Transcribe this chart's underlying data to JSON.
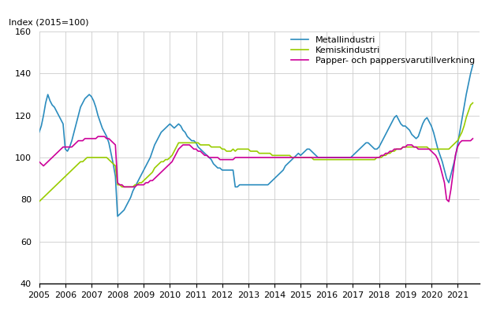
{
  "title": "Index (2015=100)",
  "ylabel": "Index (2015=100)",
  "ylim": [
    40,
    160
  ],
  "yticks": [
    40,
    60,
    80,
    100,
    120,
    140,
    160
  ],
  "xlim_start": 2005.0,
  "xlim_end": 2021.83,
  "xtick_years": [
    2005,
    2006,
    2007,
    2008,
    2009,
    2010,
    2011,
    2012,
    2013,
    2014,
    2015,
    2016,
    2017,
    2018,
    2019,
    2020,
    2021
  ],
  "legend_labels": [
    "Metallindustri",
    "Kemiskindustri",
    "Papper- och pappersvarutillverkning"
  ],
  "colors": {
    "metallindustri": "#2b8cbe",
    "kemiskindustri": "#99cc00",
    "papper": "#cc0099"
  },
  "metallindustri": [
    112,
    115,
    120,
    126,
    130,
    127,
    125,
    124,
    122,
    120,
    118,
    116,
    104,
    103,
    105,
    108,
    112,
    116,
    120,
    124,
    126,
    128,
    129,
    130,
    129,
    127,
    124,
    120,
    117,
    114,
    112,
    110,
    107,
    102,
    97,
    91,
    72,
    73,
    74,
    75,
    77,
    79,
    81,
    84,
    86,
    88,
    90,
    92,
    94,
    96,
    98,
    100,
    103,
    106,
    108,
    110,
    112,
    113,
    114,
    115,
    116,
    115,
    114,
    115,
    116,
    115,
    113,
    112,
    110,
    109,
    108,
    108,
    107,
    105,
    104,
    103,
    102,
    101,
    100,
    99,
    97,
    96,
    95,
    95,
    94,
    94,
    94,
    94,
    94,
    94,
    86,
    86,
    87,
    87,
    87,
    87,
    87,
    87,
    87,
    87,
    87,
    87,
    87,
    87,
    87,
    87,
    88,
    89,
    90,
    91,
    92,
    93,
    94,
    96,
    97,
    98,
    99,
    100,
    101,
    102,
    101,
    102,
    103,
    104,
    104,
    103,
    102,
    101,
    100,
    100,
    100,
    100,
    100,
    100,
    100,
    100,
    100,
    100,
    100,
    100,
    100,
    100,
    100,
    100,
    101,
    102,
    103,
    104,
    105,
    106,
    107,
    107,
    106,
    105,
    104,
    104,
    105,
    107,
    109,
    111,
    113,
    115,
    117,
    119,
    120,
    118,
    116,
    115,
    115,
    114,
    113,
    111,
    110,
    109,
    110,
    113,
    116,
    118,
    119,
    117,
    115,
    112,
    108,
    104,
    101,
    98,
    94,
    90,
    88,
    92,
    96,
    100,
    106,
    112,
    118,
    124,
    130,
    135,
    140,
    144
  ],
  "kemiskindustri": [
    79,
    80,
    81,
    82,
    83,
    84,
    85,
    86,
    87,
    88,
    89,
    90,
    91,
    92,
    93,
    94,
    95,
    96,
    97,
    98,
    98,
    99,
    100,
    100,
    100,
    100,
    100,
    100,
    100,
    100,
    100,
    100,
    99,
    98,
    97,
    96,
    87,
    87,
    86,
    86,
    86,
    86,
    86,
    86,
    87,
    87,
    88,
    88,
    89,
    90,
    91,
    92,
    93,
    95,
    96,
    97,
    98,
    98,
    99,
    99,
    100,
    101,
    103,
    105,
    107,
    107,
    107,
    107,
    107,
    107,
    107,
    107,
    107,
    107,
    106,
    106,
    106,
    106,
    106,
    105,
    105,
    105,
    105,
    105,
    104,
    104,
    103,
    103,
    103,
    104,
    103,
    104,
    104,
    104,
    104,
    104,
    104,
    103,
    103,
    103,
    103,
    102,
    102,
    102,
    102,
    102,
    102,
    101,
    101,
    101,
    101,
    101,
    101,
    101,
    101,
    101,
    100,
    100,
    100,
    100,
    100,
    100,
    100,
    100,
    100,
    100,
    99,
    99,
    99,
    99,
    99,
    99,
    99,
    99,
    99,
    99,
    99,
    99,
    99,
    99,
    99,
    99,
    99,
    99,
    99,
    99,
    99,
    99,
    99,
    99,
    99,
    99,
    99,
    99,
    99,
    100,
    100,
    100,
    101,
    101,
    102,
    102,
    103,
    103,
    104,
    104,
    104,
    105,
    105,
    105,
    105,
    105,
    105,
    105,
    105,
    105,
    105,
    105,
    105,
    104,
    104,
    104,
    104,
    104,
    104,
    104,
    104,
    104,
    104,
    105,
    106,
    107,
    108,
    110,
    112,
    115,
    119,
    122,
    125,
    126
  ],
  "papper": [
    98,
    97,
    96,
    97,
    98,
    99,
    100,
    101,
    102,
    103,
    104,
    105,
    105,
    105,
    105,
    105,
    106,
    107,
    108,
    108,
    108,
    109,
    109,
    109,
    109,
    109,
    109,
    110,
    110,
    110,
    110,
    109,
    109,
    108,
    107,
    106,
    88,
    87,
    87,
    86,
    86,
    86,
    86,
    86,
    86,
    87,
    87,
    87,
    87,
    88,
    88,
    89,
    89,
    90,
    91,
    92,
    93,
    94,
    95,
    96,
    97,
    98,
    100,
    102,
    104,
    105,
    106,
    106,
    106,
    106,
    105,
    104,
    104,
    103,
    103,
    102,
    101,
    101,
    100,
    100,
    100,
    100,
    100,
    99,
    99,
    99,
    99,
    99,
    99,
    99,
    100,
    100,
    100,
    100,
    100,
    100,
    100,
    100,
    100,
    100,
    100,
    100,
    100,
    100,
    100,
    100,
    100,
    100,
    100,
    100,
    100,
    100,
    100,
    100,
    100,
    100,
    100,
    100,
    100,
    100,
    100,
    100,
    100,
    100,
    100,
    100,
    100,
    100,
    100,
    100,
    100,
    100,
    100,
    100,
    100,
    100,
    100,
    100,
    100,
    100,
    100,
    100,
    100,
    100,
    100,
    100,
    100,
    100,
    100,
    100,
    100,
    100,
    100,
    100,
    100,
    100,
    100,
    101,
    101,
    102,
    102,
    103,
    103,
    104,
    104,
    104,
    104,
    105,
    105,
    106,
    106,
    106,
    105,
    105,
    104,
    104,
    104,
    104,
    104,
    104,
    103,
    102,
    101,
    99,
    96,
    92,
    88,
    80,
    79,
    85,
    93,
    101,
    105,
    107,
    108,
    108,
    108,
    108,
    108,
    109
  ]
}
